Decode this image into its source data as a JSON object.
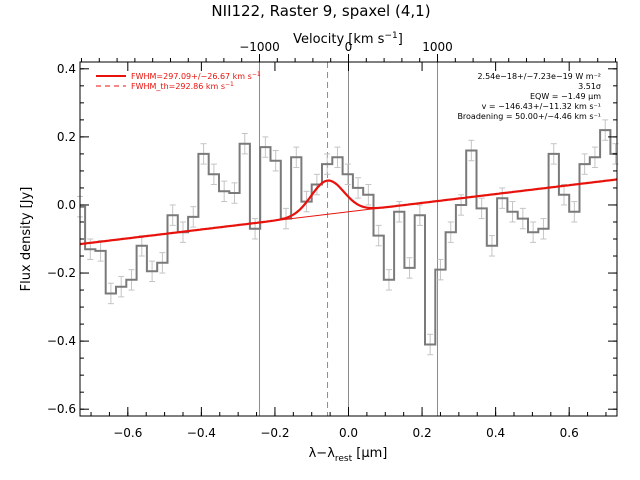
{
  "chart_data": {
    "type": "line",
    "title": "NII122, Raster 9, spaxel (4,1)",
    "xlabel": "λ−λ",
    "xlabel_sub": "rest",
    "xlabel_unit": " [μm]",
    "ylabel": "Flux density [Jy]",
    "top_xlabel": "Velocity [km s",
    "top_xlabel_sup": "−1",
    "top_xlabel_end": "]",
    "xlim": [
      -0.73,
      0.73
    ],
    "ylim": [
      -0.62,
      0.42
    ],
    "xticks": [
      -0.6,
      -0.4,
      -0.2,
      0.0,
      0.2,
      0.4,
      0.6
    ],
    "xtick_labels": [
      "−0.6",
      "−0.4",
      "−0.2",
      "0.0",
      "0.2",
      "0.4",
      "0.6"
    ],
    "yticks": [
      -0.6,
      -0.4,
      -0.2,
      0.0,
      0.2,
      0.4
    ],
    "ytick_labels": [
      "−0.6",
      "−0.4",
      "−0.2",
      "0.0",
      "0.2",
      "0.4"
    ],
    "top_ticks": [
      -1000,
      0,
      1000
    ],
    "top_tick_labels": [
      "−1000",
      "0",
      "1000"
    ],
    "um_per_kms": 0.000242,
    "legend": [
      {
        "label": "FWHM=297.09+/−26.67 km s",
        "sup": "−1",
        "color": "#e8120c",
        "style": "solid"
      },
      {
        "label": "FWHM_th=292.86 km s",
        "sup": "−1",
        "color": "#e8120c",
        "style": "dashed"
      }
    ],
    "annotations": [
      "2.54e−18+/−7.23e−19 W m⁻²",
      "3.51σ",
      "EQW = −1.49 μm",
      "v = −146.43+/−11.32 km s⁻¹",
      "Broadening = 50.00+/−4.46 km s⁻¹"
    ],
    "vlines_solid": [
      -0.242,
      0.0,
      0.242
    ],
    "vline_dashed": -0.057,
    "continuum": {
      "x0": -0.73,
      "y0": -0.115,
      "x1": 0.73,
      "y1": 0.075
    },
    "gaussian": {
      "center": -0.057,
      "amplitude": 0.099,
      "sigma": 0.0445
    },
    "spectrum_step": 0.028,
    "spectrum": {
      "x": [
        -0.73,
        -0.702,
        -0.674,
        -0.646,
        -0.618,
        -0.59,
        -0.562,
        -0.534,
        -0.506,
        -0.478,
        -0.45,
        -0.422,
        -0.394,
        -0.366,
        -0.338,
        -0.31,
        -0.282,
        -0.254,
        -0.226,
        -0.198,
        -0.17,
        -0.142,
        -0.114,
        -0.086,
        -0.058,
        -0.03,
        -0.002,
        0.026,
        0.054,
        0.082,
        0.11,
        0.138,
        0.166,
        0.194,
        0.222,
        0.25,
        0.278,
        0.306,
        0.334,
        0.362,
        0.39,
        0.418,
        0.446,
        0.474,
        0.502,
        0.53,
        0.558,
        0.586,
        0.614,
        0.642,
        0.67,
        0.698,
        0.726
      ],
      "y": [
        -0.005,
        -0.13,
        -0.135,
        -0.26,
        -0.24,
        -0.22,
        -0.12,
        -0.195,
        -0.17,
        -0.03,
        -0.08,
        -0.035,
        0.15,
        0.09,
        0.04,
        0.035,
        0.18,
        -0.07,
        0.17,
        0.13,
        -0.04,
        0.14,
        0.01,
        0.06,
        0.12,
        0.14,
        0.09,
        0.05,
        0.03,
        -0.09,
        -0.22,
        -0.02,
        -0.185,
        -0.03,
        -0.41,
        -0.19,
        -0.08,
        0.0,
        0.16,
        -0.01,
        -0.12,
        0.02,
        -0.02,
        -0.04,
        -0.08,
        -0.07,
        0.15,
        0.03,
        -0.02,
        0.12,
        0.14,
        0.22,
        0.15
      ]
    },
    "error_bar": 0.03,
    "colors": {
      "spectrum": "#7a7a7a",
      "errorbar": "#c4c4c4",
      "fit": "#e8120c",
      "vline": "#8c8c8c"
    }
  }
}
